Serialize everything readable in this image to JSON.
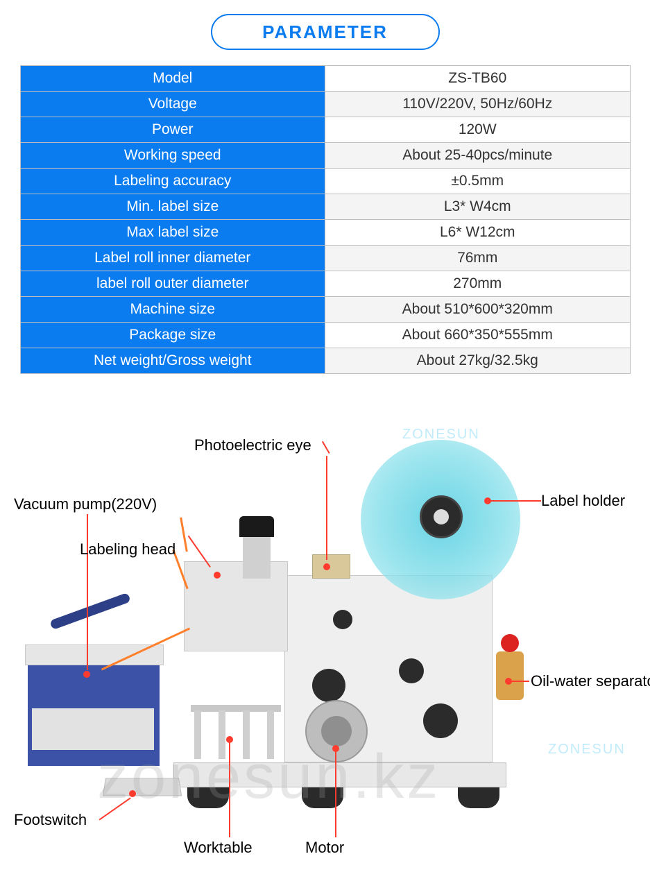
{
  "header": {
    "title": "PARAMETER"
  },
  "table": {
    "rows": [
      {
        "key": "Model",
        "value": "ZS-TB60"
      },
      {
        "key": "Voltage",
        "value": "110V/220V, 50Hz/60Hz"
      },
      {
        "key": "Power",
        "value": "120W"
      },
      {
        "key": "Working speed",
        "value": "About 25-40pcs/minute"
      },
      {
        "key": "Labeling accuracy",
        "value": "±0.5mm"
      },
      {
        "key": "Min. label size",
        "value": "L3* W4cm"
      },
      {
        "key": "Max label size",
        "value": "L6* W12cm"
      },
      {
        "key": "Label roll inner diameter",
        "value": "76mm"
      },
      {
        "key": "label roll outer diameter",
        "value": "270mm"
      },
      {
        "key": "Machine size",
        "value": "About 510*600*320mm"
      },
      {
        "key": "Package size",
        "value": "About 660*350*555mm"
      },
      {
        "key": "Net weight/Gross weight",
        "value": "About 27kg/32.5kg"
      }
    ]
  },
  "diagram": {
    "callouts": {
      "photoelectric_eye": "Photoelectric eye",
      "label_holder": "Label holder",
      "vacuum_pump": "Vacuum pump(220V)",
      "labeling_head": "Labeling head",
      "oil_water_separator": "Oil-water separator",
      "footswitch": "Footswitch",
      "worktable": "Worktable",
      "motor": "Motor"
    },
    "brand": "ZONESUN",
    "watermark": "zonesun.kz",
    "colors": {
      "accent_blue": "#0a7cf0",
      "callout_red": "#ff3b2e",
      "disc_teal": "#7adce8",
      "pump_blue": "#3b52a6",
      "separator_amber": "#d9a24b"
    }
  }
}
